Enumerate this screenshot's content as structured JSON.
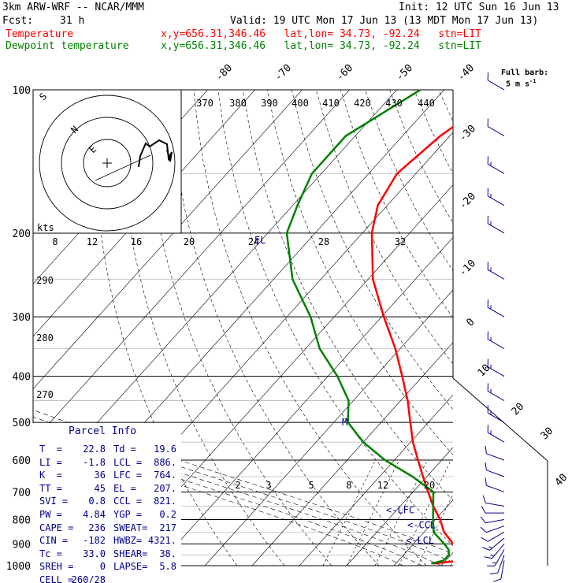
{
  "header": {
    "model": "3km ARW-WRF -- NCAR/MMM",
    "init": "Init: 12 UTC Sun 16 Jun 13",
    "fcst_label": "Fcst:",
    "fcst_value": "31 h",
    "valid": "Valid: 19 UTC Mon 17 Jun 13 (13 MDT Mon 17 Jun 13)",
    "temp_name": "Temperature",
    "dew_name": "Dewpoint temperature",
    "loc_line": "x,y=656.31,346.46   lat,lon= 34.73, -92.24   stn=LIT"
  },
  "colors": {
    "temperature": "#ff0000",
    "dewpoint": "#008000",
    "parcel": "#00008b",
    "axes": "#000000"
  },
  "barb_legend": {
    "title": "Full barb:",
    "value": "5 m s",
    "exp": "-1"
  },
  "parcel_info": {
    "title": "Parcel Info",
    "rows": [
      [
        "T  =",
        "22.8",
        "Td =",
        "19.6"
      ],
      [
        "LI =",
        "-1.8",
        "LCL =",
        "886."
      ],
      [
        "K  =",
        "36",
        "LFC =",
        "764."
      ],
      [
        "TT =",
        "45",
        "EL =",
        "207."
      ],
      [
        "SVI =",
        "0.8",
        "CCL =",
        "821."
      ],
      [
        "PW =",
        "4.84",
        "YGP =",
        "0.2"
      ],
      [
        "CAPE =",
        "236",
        "SWEAT=",
        "217"
      ],
      [
        "CIN =",
        "-182",
        "HWBZ=",
        "4321."
      ],
      [
        "Tc =",
        "33.0",
        "SHEAR=",
        "38."
      ],
      [
        "SREH =",
        "0",
        "LAPSE=",
        "5.8"
      ],
      [
        "CELL =",
        "260/28",
        "",
        ""
      ]
    ]
  },
  "chart_data": {
    "type": "line",
    "subtype": "skew-T log-p",
    "pressure_levels": [
      1000,
      900,
      800,
      700,
      600,
      500,
      400,
      300,
      200,
      100
    ],
    "isotherm_labels": [
      "-80",
      "-70",
      "-60",
      "-50",
      "-40",
      "-30",
      "-20",
      "-10",
      "0",
      "10",
      "20",
      "30",
      "40"
    ],
    "theta_labels_top": [
      "370",
      "380",
      "390",
      "400",
      "410",
      "420",
      "430",
      "440"
    ],
    "theta_labels_left": [
      "290",
      "280",
      "270"
    ],
    "mixing_ratio_labels": [
      "2",
      "3",
      "5",
      "8",
      "12",
      "20"
    ],
    "level_markers": [
      "<-LFC",
      "<-CCL",
      "<-LCL",
      "EL",
      "M"
    ],
    "hodograph": {
      "units": "kts",
      "ring_labels": [
        "8",
        "12",
        "16",
        "20",
        "24",
        "28",
        "32"
      ],
      "compass_labels": [
        "S",
        "N",
        "E"
      ]
    },
    "series": [
      {
        "name": "Temperature",
        "units": "C",
        "points": [
          [
            990,
            18
          ],
          [
            975,
            23
          ],
          [
            950,
            22.8
          ],
          [
            925,
            20.6
          ],
          [
            900,
            18.4
          ],
          [
            850,
            14.2
          ],
          [
            800,
            11
          ],
          [
            750,
            7
          ],
          [
            700,
            3.2
          ],
          [
            650,
            -0.8
          ],
          [
            600,
            -5
          ],
          [
            550,
            -9.5
          ],
          [
            500,
            -13.8
          ],
          [
            450,
            -18.5
          ],
          [
            400,
            -24.3
          ],
          [
            350,
            -31
          ],
          [
            300,
            -39.5
          ],
          [
            250,
            -49
          ],
          [
            200,
            -58
          ],
          [
            175,
            -62
          ],
          [
            150,
            -64
          ],
          [
            125,
            -62
          ],
          [
            100,
            -57
          ]
        ]
      },
      {
        "name": "Dewpoint temperature",
        "units": "C",
        "points": [
          [
            990,
            17.5
          ],
          [
            975,
            19.5
          ],
          [
            950,
            19.6
          ],
          [
            925,
            18.5
          ],
          [
            900,
            16.5
          ],
          [
            850,
            12
          ],
          [
            800,
            9.5
          ],
          [
            750,
            7
          ],
          [
            700,
            4.3
          ],
          [
            650,
            -3
          ],
          [
            600,
            -12
          ],
          [
            550,
            -20
          ],
          [
            500,
            -27
          ],
          [
            450,
            -31
          ],
          [
            400,
            -38
          ],
          [
            350,
            -47
          ],
          [
            300,
            -55
          ],
          [
            250,
            -66
          ],
          [
            200,
            -76
          ],
          [
            175,
            -79
          ],
          [
            150,
            -82
          ],
          [
            125,
            -82
          ],
          [
            100,
            -75
          ]
        ]
      }
    ],
    "wind_barbs": [
      {
        "p": 975,
        "dir": 190,
        "spd": 10
      },
      {
        "p": 950,
        "dir": 200,
        "spd": 12
      },
      {
        "p": 925,
        "dir": 210,
        "spd": 15
      },
      {
        "p": 900,
        "dir": 220,
        "spd": 15
      },
      {
        "p": 875,
        "dir": 230,
        "spd": 15
      },
      {
        "p": 850,
        "dir": 240,
        "spd": 12
      },
      {
        "p": 825,
        "dir": 250,
        "spd": 10
      },
      {
        "p": 800,
        "dir": 260,
        "spd": 10
      },
      {
        "p": 775,
        "dir": 270,
        "spd": 10
      },
      {
        "p": 750,
        "dir": 280,
        "spd": 10
      },
      {
        "p": 700,
        "dir": 290,
        "spd": 10
      },
      {
        "p": 650,
        "dir": 290,
        "spd": 10
      },
      {
        "p": 600,
        "dir": 290,
        "spd": 10
      },
      {
        "p": 550,
        "dir": 300,
        "spd": 15
      },
      {
        "p": 500,
        "dir": 300,
        "spd": 15
      },
      {
        "p": 450,
        "dir": 300,
        "spd": 15
      },
      {
        "p": 400,
        "dir": 300,
        "spd": 15
      },
      {
        "p": 350,
        "dir": 300,
        "spd": 15
      },
      {
        "p": 300,
        "dir": 300,
        "spd": 15
      },
      {
        "p": 250,
        "dir": 300,
        "spd": 15
      },
      {
        "p": 200,
        "dir": 300,
        "spd": 15
      },
      {
        "p": 175,
        "dir": 300,
        "spd": 15
      },
      {
        "p": 150,
        "dir": 300,
        "spd": 15
      },
      {
        "p": 125,
        "dir": 300,
        "spd": 10
      },
      {
        "p": 100,
        "dir": 300,
        "spd": 10
      }
    ]
  }
}
